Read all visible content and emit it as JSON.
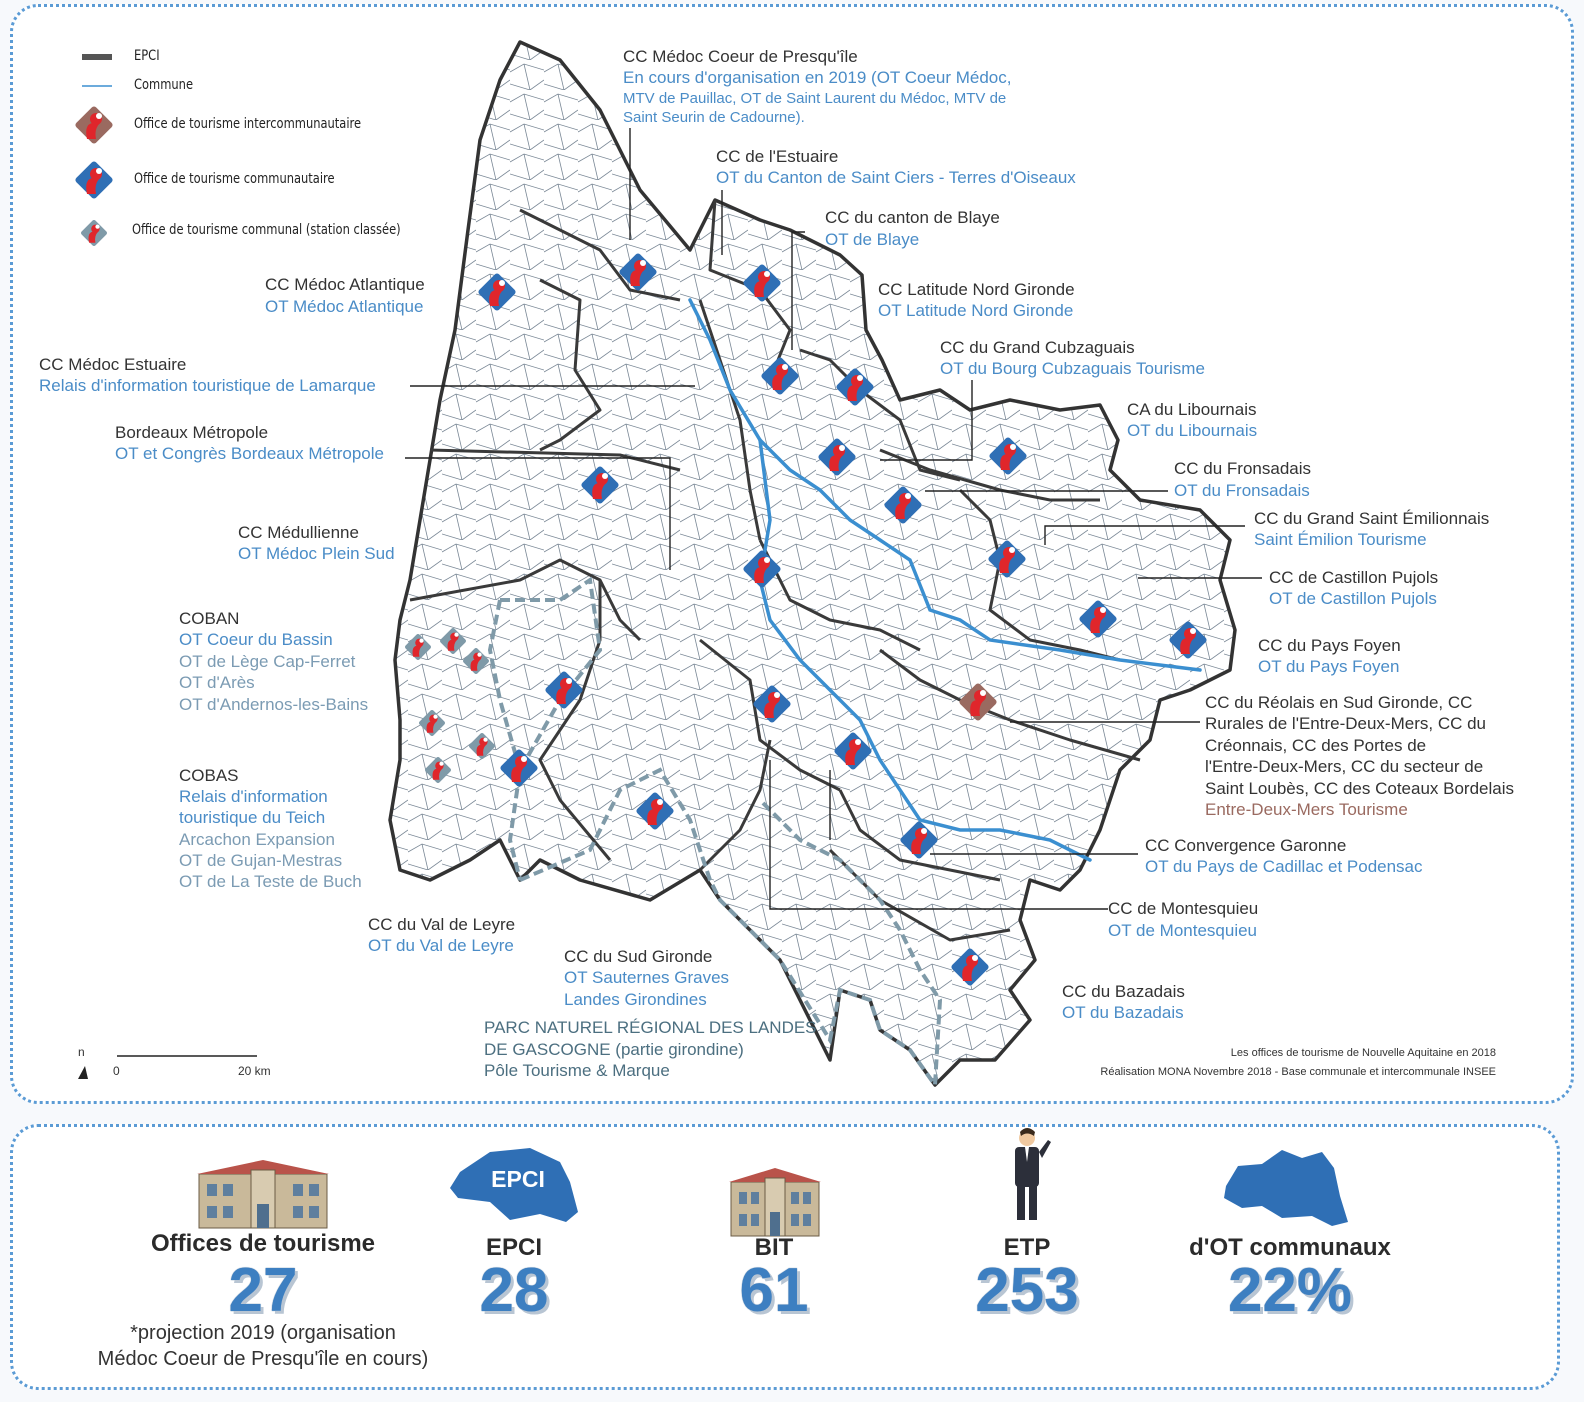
{
  "legend": {
    "epci": "EPCI",
    "commune": "Commune",
    "ot_inter": "Office de tourisme intercommunautaire",
    "ot_communautaire": "Office de tourisme communautaire",
    "ot_communal": "Office de tourisme communal (station classée)"
  },
  "labels": {
    "coeur_title": "CC Médoc Coeur de Presqu'île",
    "coeur_ot1": "En cours d'organisation en 2019 (OT Coeur Médoc,",
    "coeur_ot2": "MTV de Pauillac, OT de Saint Laurent du Médoc, MTV de",
    "coeur_ot3": "Saint Seurin de Cadourne).",
    "estuaire_title": "CC de l'Estuaire",
    "estuaire_ot": "OT du Canton de Saint Ciers - Terres d'Oiseaux",
    "blaye_title": "CC du canton de Blaye",
    "blaye_ot": "OT de Blaye",
    "atl_title": "CC Médoc Atlantique",
    "atl_ot": "OT Médoc Atlantique",
    "latitude_title": "CC Latitude Nord Gironde",
    "latitude_ot": "OT Latitude Nord Gironde",
    "estuaire2_title": "CC Médoc Estuaire",
    "estuaire2_ot": "Relais d'information touristique de Lamarque",
    "cubz_title": "CC du Grand Cubzaguais",
    "cubz_ot": "OT du Bourg Cubzaguais Tourisme",
    "libournais_title": "CA du Libournais",
    "libournais_ot": "OT du Libournais",
    "bdx_title": "Bordeaux Métropole",
    "bdx_ot": "OT et Congrès Bordeaux Métropole",
    "fronsadais_title": "CC du Fronsadais",
    "fronsadais_ot": "OT du Fronsadais",
    "emilion_title": "CC du Grand Saint Émilionnais",
    "emilion_ot": "Saint Émilion Tourisme",
    "medullienne_title": "CC Médullienne",
    "medullienne_ot": "OT Médoc Plein Sud",
    "castillon_title": "CC de Castillon Pujols",
    "castillon_ot": "OT de Castillon Pujols",
    "coban_title": "COBAN",
    "coban_ot1": "OT Coeur du Bassin",
    "coban_ot2": "OT de Lège Cap-Ferret",
    "coban_ot3": "OT d'Arès",
    "coban_ot4": "OT d'Andernos-les-Bains",
    "foyen_title": "CC du Pays Foyen",
    "foyen_ot": "OT du Pays Foyen",
    "reolais1": "CC du Réolais en Sud Gironde, CC",
    "reolais2": "Rurales de l'Entre-Deux-Mers, CC du",
    "reolais3": "Créonnais, CC des Portes de",
    "reolais4": "l'Entre-Deux-Mers, CC du secteur de",
    "reolais5": "Saint Loubès, CC des Coteaux Bordelais",
    "reolais_ot": "Entre-Deux-Mers Tourisme",
    "cobas_title": "COBAS",
    "cobas_ot1": "Relais d'information",
    "cobas_ot2": "touristique du Teich",
    "cobas_ot3": "Arcachon Expansion",
    "cobas_ot4": "OT de Gujan-Mestras",
    "cobas_ot5": "OT de La Teste de Buch",
    "garonne_title": "CC Convergence Garonne",
    "garonne_ot": "OT du Pays de Cadillac et Podensac",
    "leyre_title": "CC du Val de Leyre",
    "leyre_ot": "OT du Val de Leyre",
    "montesquieu_title": "CC de Montesquieu",
    "montesquieu_ot": "OT de Montesquieu",
    "sudgironde_title": "CC du Sud Gironde",
    "sudgironde_ot1": "OT Sauternes Graves",
    "sudgironde_ot2": "Landes Girondines",
    "bazadais_title": "CC du Bazadais",
    "bazadais_ot": "OT du Bazadais",
    "parc1": "PARC NATUREL RÉGIONAL DES LANDES",
    "parc2": "DE GASCOGNE (partie girondine)",
    "parc3": "Pôle Tourisme & Marque"
  },
  "scale": {
    "north": "n",
    "zero": "0",
    "km": "20 km"
  },
  "credits": {
    "line1": "Les offices de tourisme de Nouvelle Aquitaine en 2018",
    "line2": "Réalisation MONA Novembre 2018 - Base communale et intercommunale INSEE"
  },
  "stats": {
    "ot": {
      "title": "Offices de tourisme",
      "value": "27"
    },
    "epci": {
      "badge": "EPCI",
      "title": "EPCI",
      "value": "28"
    },
    "bit": {
      "title": "BIT",
      "value": "61"
    },
    "etp": {
      "title": "ETP",
      "value": "253"
    },
    "communaux": {
      "title": "d'OT communaux",
      "value": "22%"
    },
    "note1": "*projection 2019 (organisation",
    "note2": "Médoc Coeur de Presqu'île en cours)"
  },
  "colors": {
    "blue_ot": "#2f6fb5",
    "red_logo": "#e0262b",
    "brown_ot": "#9a6a60",
    "river": "#3b8fd0",
    "epci_border": "#333333",
    "park": "#7f9aa8"
  }
}
